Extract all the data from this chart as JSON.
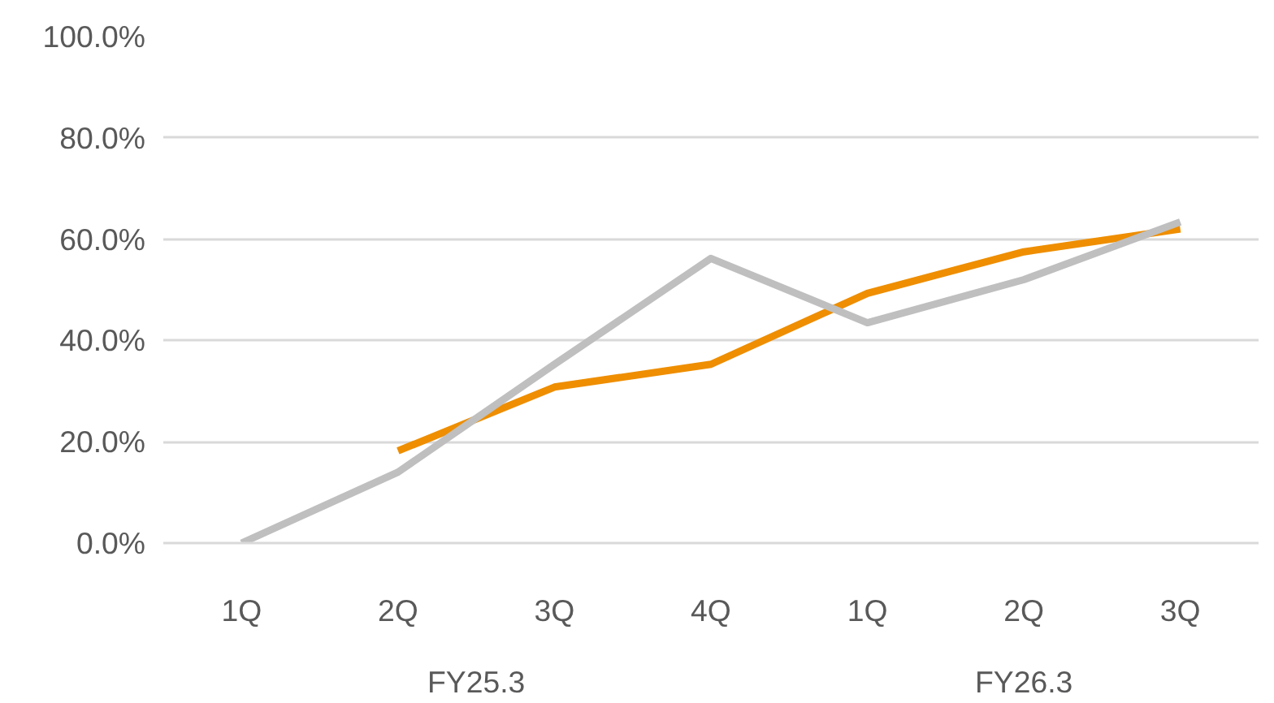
{
  "chart_data": {
    "type": "line",
    "categories": [
      "1Q",
      "2Q",
      "3Q",
      "4Q",
      "1Q",
      "2Q",
      "3Q"
    ],
    "series": [
      {
        "color": "#ee8e00",
        "values": [
          null,
          18.2,
          30.8,
          35.3,
          49.3,
          57.5,
          62.0
        ]
      },
      {
        "color": "#bfbfbf",
        "values": [
          0,
          14.0,
          35.3,
          56.2,
          43.5,
          52.0,
          63.4
        ]
      }
    ],
    "ylim": [
      0,
      100
    ],
    "yticks": [
      {
        "value": 0,
        "label": "0.0%"
      },
      {
        "value": 20,
        "label": "20.0%"
      },
      {
        "value": 40,
        "label": "40.0%"
      },
      {
        "value": 60,
        "label": "60.0%"
      },
      {
        "value": 80,
        "label": "80.0%"
      },
      {
        "value": 100,
        "label": "100.0%"
      }
    ],
    "grid": "y",
    "marker": "none",
    "line_style": "solid",
    "annotations": [
      "FY25.3",
      "FY26.3"
    ]
  }
}
